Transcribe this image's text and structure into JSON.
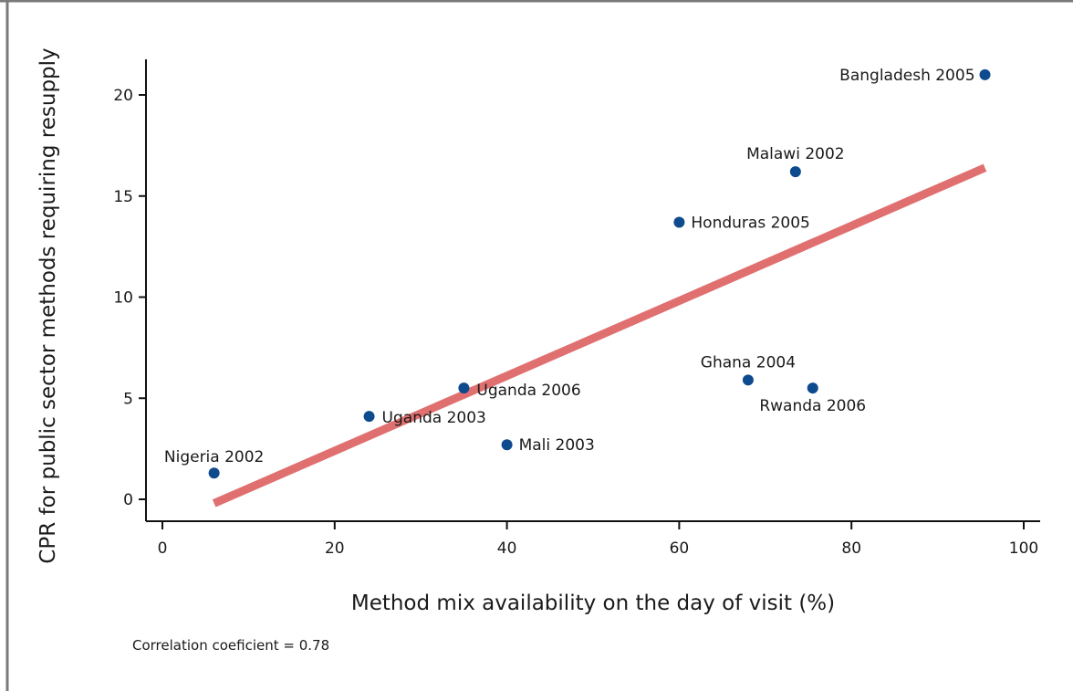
{
  "chart_data": {
    "type": "scatter",
    "title": "",
    "xlabel": "Method mix availability on the day of visit (%)",
    "ylabel": "CPR for public sector methods requiring resupply",
    "xlim": [
      0,
      100
    ],
    "ylim": [
      0,
      20
    ],
    "xticks": [
      "0",
      "20",
      "40",
      "60",
      "80",
      "100"
    ],
    "yticks": [
      "0",
      "5",
      "10",
      "15",
      "20"
    ],
    "grid": false,
    "colors": {
      "points": "#0e4a8e",
      "trendline": "#e07070",
      "axis": "#111111",
      "border": "#7a7a7a"
    },
    "points": [
      {
        "label": "Nigeria 2002",
        "x": 6,
        "y": 1.3
      },
      {
        "label": "Uganda 2003",
        "x": 24,
        "y": 4.1
      },
      {
        "label": "Uganda 2006",
        "x": 35,
        "y": 5.5
      },
      {
        "label": "Mali 2003",
        "x": 40,
        "y": 2.7
      },
      {
        "label": "Honduras 2005",
        "x": 60,
        "y": 13.7
      },
      {
        "label": "Ghana 2004",
        "x": 68,
        "y": 5.9
      },
      {
        "label": "Rwanda 2006",
        "x": 75.5,
        "y": 5.5
      },
      {
        "label": "Malawi 2002",
        "x": 73.5,
        "y": 16.2
      },
      {
        "label": "Bangladesh 2005",
        "x": 95.5,
        "y": 21.0
      }
    ],
    "trendline": {
      "x": [
        6,
        95.5
      ],
      "y": [
        -0.2,
        16.4
      ]
    }
  },
  "footnote": "Correlation coeficient = 0.78"
}
